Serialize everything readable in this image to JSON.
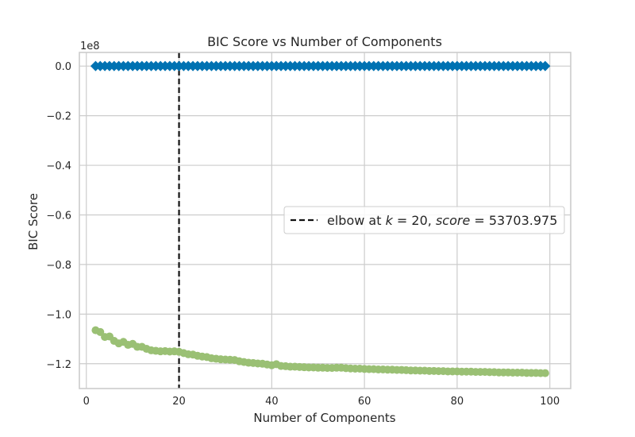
{
  "chart_data": {
    "type": "scatter",
    "title": "BIC Score vs Number of Components",
    "xlabel": "Number of Components",
    "ylabel": "BIC Score",
    "y_multiplier_label": "1e8",
    "xlim": [
      -1.5,
      104.5
    ],
    "ylim": [
      -1.3,
      0.055
    ],
    "xticks": [
      0,
      20,
      40,
      60,
      80,
      100
    ],
    "xtick_labels": [
      "0",
      "20",
      "40",
      "60",
      "80",
      "100"
    ],
    "yticks": [
      0.0,
      -0.2,
      -0.4,
      -0.6,
      -0.8,
      -1.0,
      -1.2
    ],
    "ytick_labels": [
      "0.0",
      "−0.2",
      "−0.4",
      "−0.6",
      "−0.8",
      "−1.0",
      "−1.2"
    ],
    "grid": true,
    "legend_position": "center-right",
    "colors": {
      "blue": "#0072b2",
      "green": "#9ac074",
      "elbow": "#111111",
      "grid": "#cccccc",
      "frame": "#cccccc"
    },
    "elbow": {
      "x": 20,
      "legend_parts": [
        {
          "t": "elbow at ",
          "style": "normal"
        },
        {
          "t": "k",
          "style": "italic"
        },
        {
          "t": " = 20, ",
          "style": "normal"
        },
        {
          "t": "score",
          "style": "italic"
        },
        {
          "t": " = 53703.975",
          "style": "normal"
        }
      ]
    },
    "series": [
      {
        "marker": "diamond",
        "color": "blue",
        "x_start": 2,
        "x_end": 99,
        "values": [
          0.0
        ]
      },
      {
        "marker": "circle",
        "color": "green",
        "x": [
          2,
          3,
          4,
          5,
          6,
          7,
          8,
          9,
          10,
          11,
          12,
          13,
          14,
          15,
          16,
          17,
          18,
          19,
          20,
          21,
          22,
          23,
          24,
          25,
          26,
          27,
          28,
          29,
          30,
          31,
          32,
          33,
          34,
          35,
          36,
          37,
          38,
          39,
          40,
          41,
          42,
          43,
          44,
          45,
          46,
          47,
          48,
          49,
          50,
          51,
          52,
          53,
          54,
          55,
          56,
          57,
          58,
          59,
          60,
          61,
          62,
          63,
          64,
          65,
          66,
          67,
          68,
          69,
          70,
          71,
          72,
          73,
          74,
          75,
          76,
          77,
          78,
          79,
          80,
          81,
          82,
          83,
          84,
          85,
          86,
          87,
          88,
          89,
          90,
          91,
          92,
          93,
          94,
          95,
          96,
          97,
          98,
          99
        ],
        "values": [
          -1.065,
          -1.072,
          -1.092,
          -1.09,
          -1.108,
          -1.118,
          -1.112,
          -1.124,
          -1.12,
          -1.132,
          -1.132,
          -1.14,
          -1.146,
          -1.148,
          -1.15,
          -1.149,
          -1.151,
          -1.15,
          -1.152,
          -1.157,
          -1.162,
          -1.163,
          -1.168,
          -1.171,
          -1.173,
          -1.178,
          -1.18,
          -1.182,
          -1.183,
          -1.184,
          -1.185,
          -1.19,
          -1.193,
          -1.196,
          -1.197,
          -1.199,
          -1.2,
          -1.203,
          -1.206,
          -1.202,
          -1.209,
          -1.21,
          -1.212,
          -1.212,
          -1.213,
          -1.214,
          -1.215,
          -1.215,
          -1.216,
          -1.216,
          -1.217,
          -1.217,
          -1.216,
          -1.216,
          -1.218,
          -1.219,
          -1.22,
          -1.22,
          -1.221,
          -1.222,
          -1.222,
          -1.223,
          -1.223,
          -1.224,
          -1.224,
          -1.225,
          -1.225,
          -1.226,
          -1.227,
          -1.227,
          -1.228,
          -1.228,
          -1.229,
          -1.229,
          -1.23,
          -1.23,
          -1.231,
          -1.231,
          -1.231,
          -1.232,
          -1.232,
          -1.232,
          -1.233,
          -1.233,
          -1.233,
          -1.234,
          -1.234,
          -1.235,
          -1.235,
          -1.235,
          -1.236,
          -1.236,
          -1.236,
          -1.237,
          -1.237,
          -1.237,
          -1.238,
          -1.238
        ]
      }
    ]
  }
}
